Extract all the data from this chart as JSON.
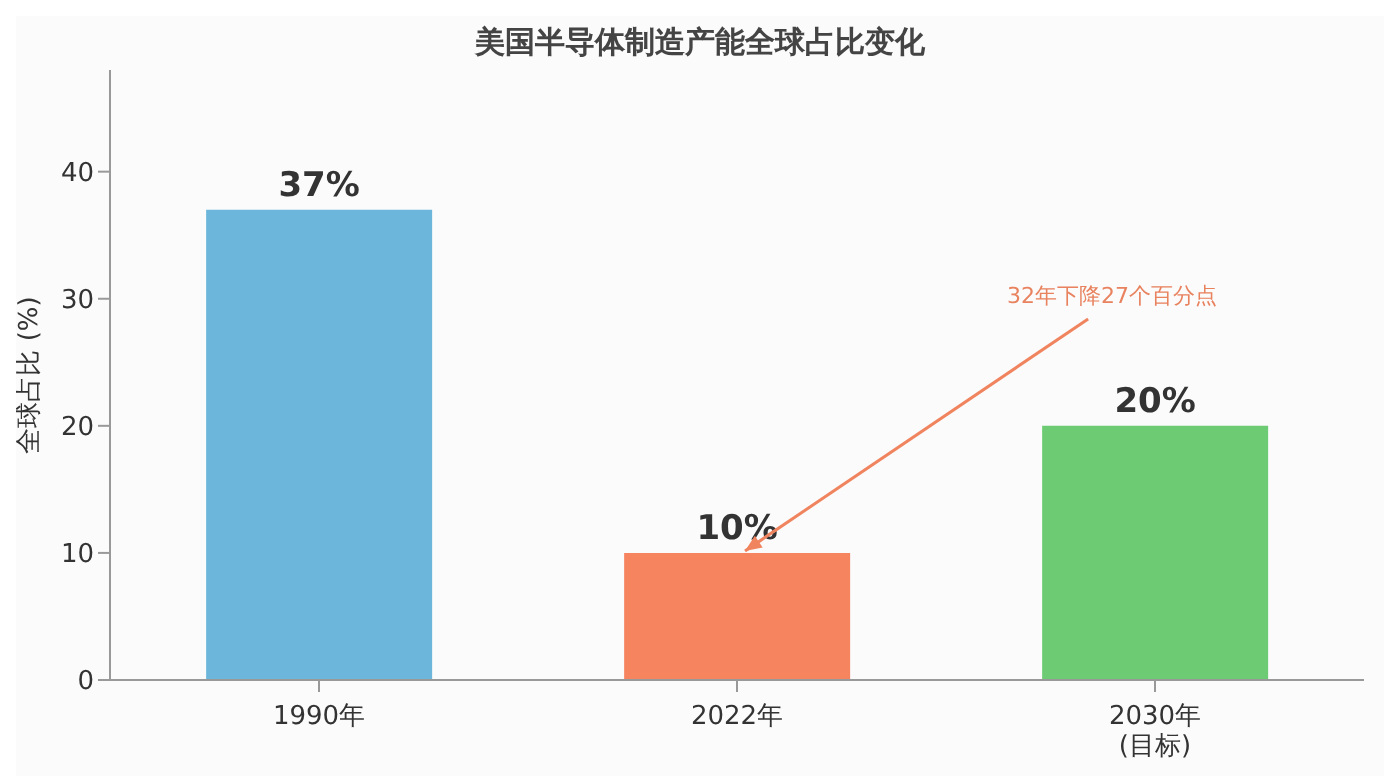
{
  "chart_data": {
    "type": "bar",
    "title": "美国半导体制造产能全球占比变化",
    "ylabel": "全球占比 (%)",
    "categories": [
      "1990年",
      "2022年",
      "2030年\n(目标)"
    ],
    "values": [
      37,
      10,
      20
    ],
    "colors": [
      "#6bb6da",
      "#f5845f",
      "#6dcb73"
    ],
    "value_labels": [
      "37%",
      "10%",
      "20%"
    ],
    "ylim": [
      0,
      48
    ],
    "yticks": [
      0,
      10,
      20,
      30,
      40
    ],
    "annotations": [
      {
        "text": "32年下降27个百分点",
        "x": "2022年",
        "y": 10
      }
    ]
  }
}
